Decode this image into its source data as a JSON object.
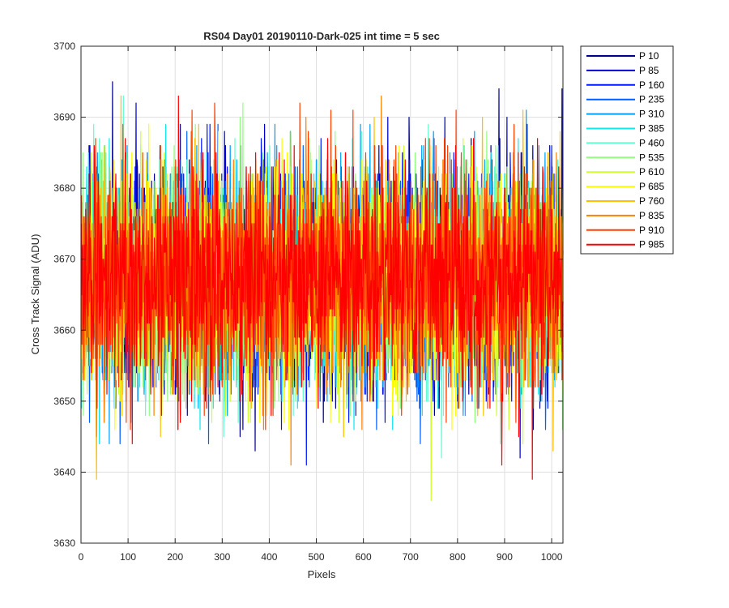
{
  "chart_data": {
    "type": "line",
    "title": "RS04 Day01 20190110-Dark-025 int time = 5 sec",
    "xlabel": "Pixels",
    "ylabel": "Cross Track Signal (ADU)",
    "xlim": [
      0,
      1024
    ],
    "ylim": [
      3630,
      3700
    ],
    "xticks": [
      0,
      100,
      200,
      300,
      400,
      500,
      600,
      700,
      800,
      900,
      1000
    ],
    "yticks": [
      3630,
      3640,
      3650,
      3660,
      3670,
      3680,
      3690,
      3700
    ],
    "grid": true,
    "legend_position": "outside-top-right",
    "x": {
      "start": 1,
      "end": 1024,
      "step": 1
    },
    "series_profile": {
      "center": 3667,
      "typical_low": 3652,
      "typical_high": 3682,
      "min_observed": 3636,
      "max_observed": 3695
    },
    "series": [
      {
        "name": "P 10",
        "color": "#00008f"
      },
      {
        "name": "P 85",
        "color": "#0000ce"
      },
      {
        "name": "P 160",
        "color": "#0018ff"
      },
      {
        "name": "P 235",
        "color": "#0060ff"
      },
      {
        "name": "P 310",
        "color": "#00a0ff"
      },
      {
        "name": "P 385",
        "color": "#10e8ef"
      },
      {
        "name": "P 460",
        "color": "#60ffcf"
      },
      {
        "name": "P 535",
        "color": "#90ff80"
      },
      {
        "name": "P 610",
        "color": "#cfff30"
      },
      {
        "name": "P 685",
        "color": "#ffff00"
      },
      {
        "name": "P 760",
        "color": "#ffc000"
      },
      {
        "name": "P 835",
        "color": "#ff8000"
      },
      {
        "name": "P 910",
        "color": "#ff4000"
      },
      {
        "name": "P 985",
        "color": "#ff0000"
      }
    ]
  }
}
